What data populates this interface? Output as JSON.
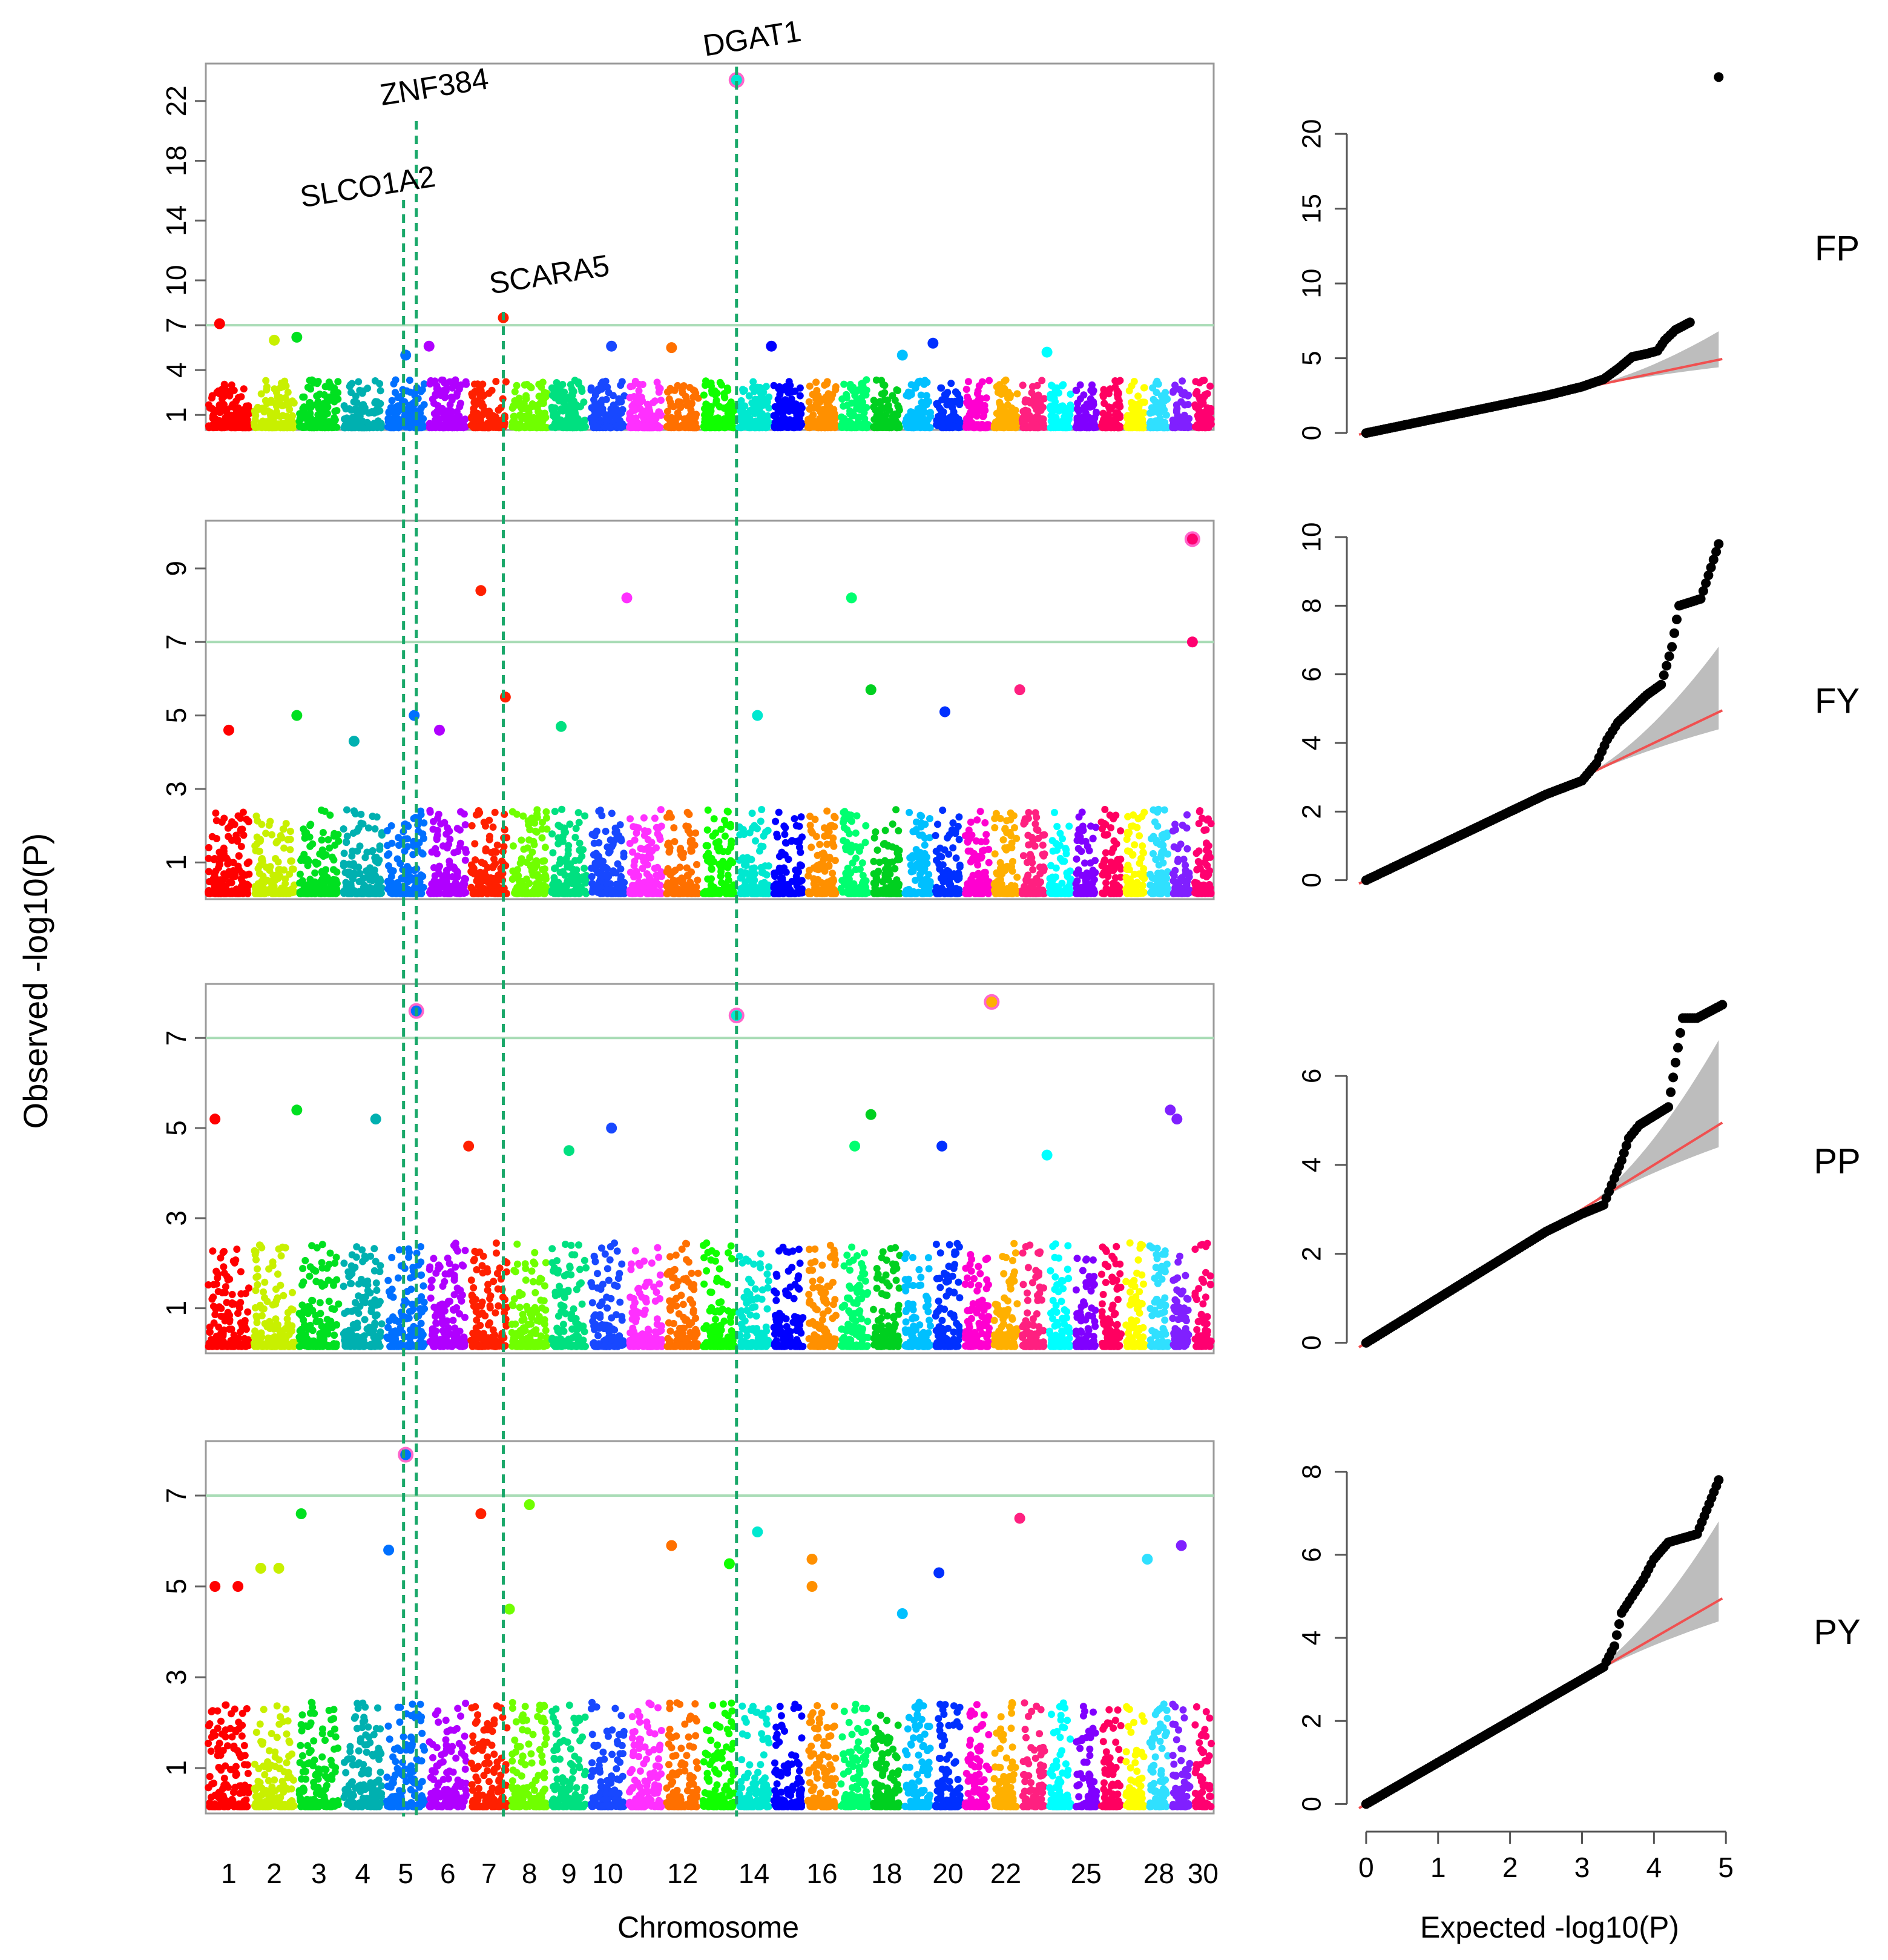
{
  "chart_data": {
    "type": "scatter",
    "figure_kind": "manhattan-and-qq",
    "manhattan": {
      "xlabel": "Chromosome",
      "ylabel": "Observed -log10(P)",
      "chromosomes": 30,
      "x_tick_labels": [
        "1",
        "2",
        "3",
        "4",
        "5",
        "6",
        "7",
        "8",
        "9",
        "10",
        "12",
        "14",
        "16",
        "18",
        "20",
        "22",
        "25",
        "28",
        "30"
      ],
      "x_tick_chromosomes": [
        1,
        2,
        3,
        4,
        5,
        6,
        7,
        8,
        9,
        10,
        12,
        14,
        16,
        18,
        20,
        22,
        25,
        28,
        30
      ],
      "chromosome_colors": [
        "#ff0000",
        "#c8f000",
        "#00e020",
        "#00b0b0",
        "#0070ff",
        "#b000ff",
        "#ff2000",
        "#70ff00",
        "#00e080",
        "#1848ff",
        "#ff30ff",
        "#ff7000",
        "#10ff00",
        "#00e8d0",
        "#0000ff",
        "#ff9000",
        "#00ff70",
        "#00d020",
        "#00c0ff",
        "#0030ff",
        "#ff00d0",
        "#ffb000",
        "#ff2080",
        "#00ffff",
        "#8000ff",
        "#ff0060",
        "#ffff00",
        "#30e0ff",
        "#8020ff",
        "#ff0070"
      ],
      "significance_threshold": 7,
      "gene_annotations": [
        {
          "gene": "SLCO1A2",
          "chromosome": 5.45
        },
        {
          "gene": "ZNF384",
          "chromosome": 5.75
        },
        {
          "gene": "SCARA5",
          "chromosome": 7.85
        },
        {
          "gene": "DGAT1",
          "chromosome": 14.0
        }
      ],
      "panels": [
        {
          "trait": "FP",
          "y_ticks": [
            1,
            4,
            7,
            10,
            14,
            18,
            22
          ],
          "ylim": [
            0,
            24.5
          ],
          "peaks": [
            {
              "chromosome": 14.0,
              "y": 23.4,
              "circled": true
            },
            {
              "chromosome": 7.85,
              "y": 7.5
            },
            {
              "chromosome": 1.3,
              "y": 7.1
            },
            {
              "chromosome": 3.0,
              "y": 6.2
            },
            {
              "chromosome": 2.5,
              "y": 6.0
            },
            {
              "chromosome": 6.05,
              "y": 5.6
            },
            {
              "chromosome": 10.6,
              "y": 5.6
            },
            {
              "chromosome": 12.2,
              "y": 5.5
            },
            {
              "chromosome": 15.0,
              "y": 5.6
            },
            {
              "chromosome": 20.0,
              "y": 5.8
            },
            {
              "chromosome": 24.0,
              "y": 5.2
            },
            {
              "chromosome": 19.0,
              "y": 5.0
            },
            {
              "chromosome": 5.5,
              "y": 5.0
            }
          ]
        },
        {
          "trait": "FY",
          "y_ticks": [
            1,
            3,
            5,
            7,
            9
          ],
          "ylim": [
            0,
            10.3
          ],
          "peaks": [
            {
              "chromosome": 30.0,
              "y": 9.8,
              "circled": true
            },
            {
              "chromosome": 7.3,
              "y": 8.4
            },
            {
              "chromosome": 11.0,
              "y": 8.2
            },
            {
              "chromosome": 17.4,
              "y": 8.2
            },
            {
              "chromosome": 30.0,
              "y": 7.0
            },
            {
              "chromosome": 23.0,
              "y": 5.7
            },
            {
              "chromosome": 18.0,
              "y": 5.7
            },
            {
              "chromosome": 7.9,
              "y": 5.5
            },
            {
              "chromosome": 20.4,
              "y": 5.1
            },
            {
              "chromosome": 3.0,
              "y": 5.0
            },
            {
              "chromosome": 5.7,
              "y": 5.0
            },
            {
              "chromosome": 14.6,
              "y": 5.0
            },
            {
              "chromosome": 1.5,
              "y": 4.6
            },
            {
              "chromosome": 6.3,
              "y": 4.6
            },
            {
              "chromosome": 9.3,
              "y": 4.7
            },
            {
              "chromosome": 4.3,
              "y": 4.3
            }
          ]
        },
        {
          "trait": "PP",
          "y_ticks": [
            1,
            3,
            5,
            7
          ],
          "ylim": [
            0,
            8.2
          ],
          "peaks": [
            {
              "chromosome": 22.0,
              "y": 7.8,
              "circled": true
            },
            {
              "chromosome": 5.75,
              "y": 7.6,
              "circled": true
            },
            {
              "chromosome": 14.0,
              "y": 7.5,
              "circled": true
            },
            {
              "chromosome": 3.0,
              "y": 5.4
            },
            {
              "chromosome": 29.0,
              "y": 5.4
            },
            {
              "chromosome": 1.2,
              "y": 5.2
            },
            {
              "chromosome": 4.8,
              "y": 5.2
            },
            {
              "chromosome": 18.0,
              "y": 5.3
            },
            {
              "chromosome": 29.3,
              "y": 5.2
            },
            {
              "chromosome": 10.6,
              "y": 5.0
            },
            {
              "chromosome": 7.0,
              "y": 4.6
            },
            {
              "chromosome": 17.5,
              "y": 4.6
            },
            {
              "chromosome": 20.3,
              "y": 4.6
            },
            {
              "chromosome": 9.5,
              "y": 4.5
            },
            {
              "chromosome": 24.0,
              "y": 4.4
            }
          ]
        },
        {
          "trait": "PY",
          "y_ticks": [
            1,
            3,
            5,
            7
          ],
          "ylim": [
            0,
            8.2
          ],
          "peaks": [
            {
              "chromosome": 5.5,
              "y": 7.9,
              "circled": true
            },
            {
              "chromosome": 8.5,
              "y": 6.8
            },
            {
              "chromosome": 3.1,
              "y": 6.6
            },
            {
              "chromosome": 7.3,
              "y": 6.6
            },
            {
              "chromosome": 23.0,
              "y": 6.5
            },
            {
              "chromosome": 14.6,
              "y": 6.2
            },
            {
              "chromosome": 12.2,
              "y": 5.9
            },
            {
              "chromosome": 29.5,
              "y": 5.9
            },
            {
              "chromosome": 5.1,
              "y": 5.8
            },
            {
              "chromosome": 16.2,
              "y": 5.6
            },
            {
              "chromosome": 28.0,
              "y": 5.6
            },
            {
              "chromosome": 13.8,
              "y": 5.5
            },
            {
              "chromosome": 2.2,
              "y": 5.4
            },
            {
              "chromosome": 2.6,
              "y": 5.4
            },
            {
              "chromosome": 20.2,
              "y": 5.3
            },
            {
              "chromosome": 1.2,
              "y": 5.0
            },
            {
              "chromosome": 1.7,
              "y": 5.0
            },
            {
              "chromosome": 16.2,
              "y": 5.0
            },
            {
              "chromosome": 8.0,
              "y": 4.5
            },
            {
              "chromosome": 19.0,
              "y": 4.4
            }
          ]
        }
      ]
    },
    "qq": {
      "xlabel": "Expected -log10(P)",
      "x_ticks": [
        0,
        1,
        2,
        3,
        4,
        5
      ],
      "xlim": [
        -0.1,
        5.2
      ],
      "panels": [
        {
          "trait": "FP",
          "y_ticks": [
            0,
            5,
            10,
            15,
            20
          ],
          "ylim": [
            -0.6,
            24.5
          ],
          "points": [
            [
              0,
              0
            ],
            [
              0.5,
              0.5
            ],
            [
              1,
              1
            ],
            [
              1.5,
              1.5
            ],
            [
              2,
              2
            ],
            [
              2.5,
              2.5
            ],
            [
              3,
              3.1
            ],
            [
              3.3,
              3.6
            ],
            [
              3.5,
              4.3
            ],
            [
              3.7,
              5.1
            ],
            [
              3.9,
              5.3
            ],
            [
              4.05,
              5.5
            ],
            [
              4.15,
              6.2
            ],
            [
              4.3,
              6.9
            ],
            [
              4.5,
              7.4
            ],
            [
              4.9,
              23.8
            ]
          ]
        },
        {
          "trait": "FY",
          "y_ticks": [
            0,
            2,
            4,
            6,
            8,
            10
          ],
          "ylim": [
            -0.2,
            10.3
          ],
          "points": [
            [
              0,
              0
            ],
            [
              0.5,
              0.5
            ],
            [
              1,
              1
            ],
            [
              1.5,
              1.5
            ],
            [
              2,
              2
            ],
            [
              2.5,
              2.5
            ],
            [
              3,
              2.9
            ],
            [
              3.2,
              3.4
            ],
            [
              3.35,
              4.1
            ],
            [
              3.5,
              4.6
            ],
            [
              3.7,
              5.0
            ],
            [
              3.9,
              5.4
            ],
            [
              4.1,
              5.7
            ],
            [
              4.25,
              6.8
            ],
            [
              4.35,
              8.0
            ],
            [
              4.5,
              8.1
            ],
            [
              4.65,
              8.2
            ],
            [
              4.9,
              9.8
            ]
          ]
        },
        {
          "trait": "PP",
          "y_ticks": [
            0,
            2,
            4,
            6
          ],
          "ylim": [
            -0.1,
            8.0
          ],
          "points": [
            [
              0,
              0
            ],
            [
              0.5,
              0.5
            ],
            [
              1,
              1
            ],
            [
              1.5,
              1.5
            ],
            [
              2,
              2
            ],
            [
              2.5,
              2.5
            ],
            [
              3,
              2.9
            ],
            [
              3.3,
              3.1
            ],
            [
              3.45,
              3.7
            ],
            [
              3.55,
              4.1
            ],
            [
              3.65,
              4.6
            ],
            [
              3.8,
              4.9
            ],
            [
              4.0,
              5.1
            ],
            [
              4.2,
              5.3
            ],
            [
              4.4,
              7.3
            ],
            [
              4.6,
              7.3
            ],
            [
              4.95,
              7.6
            ]
          ]
        },
        {
          "trait": "PY",
          "y_ticks": [
            0,
            2,
            4,
            6,
            8
          ],
          "ylim": [
            -0.3,
            8.3
          ],
          "points": [
            [
              0,
              0
            ],
            [
              0.5,
              0.5
            ],
            [
              1,
              1
            ],
            [
              1.5,
              1.5
            ],
            [
              2,
              2
            ],
            [
              2.5,
              2.5
            ],
            [
              3,
              3.0
            ],
            [
              3.3,
              3.3
            ],
            [
              3.45,
              3.8
            ],
            [
              3.55,
              4.6
            ],
            [
              3.7,
              5.0
            ],
            [
              3.85,
              5.4
            ],
            [
              4.0,
              5.9
            ],
            [
              4.2,
              6.3
            ],
            [
              4.4,
              6.4
            ],
            [
              4.6,
              6.5
            ],
            [
              4.9,
              7.8
            ]
          ]
        }
      ]
    }
  }
}
